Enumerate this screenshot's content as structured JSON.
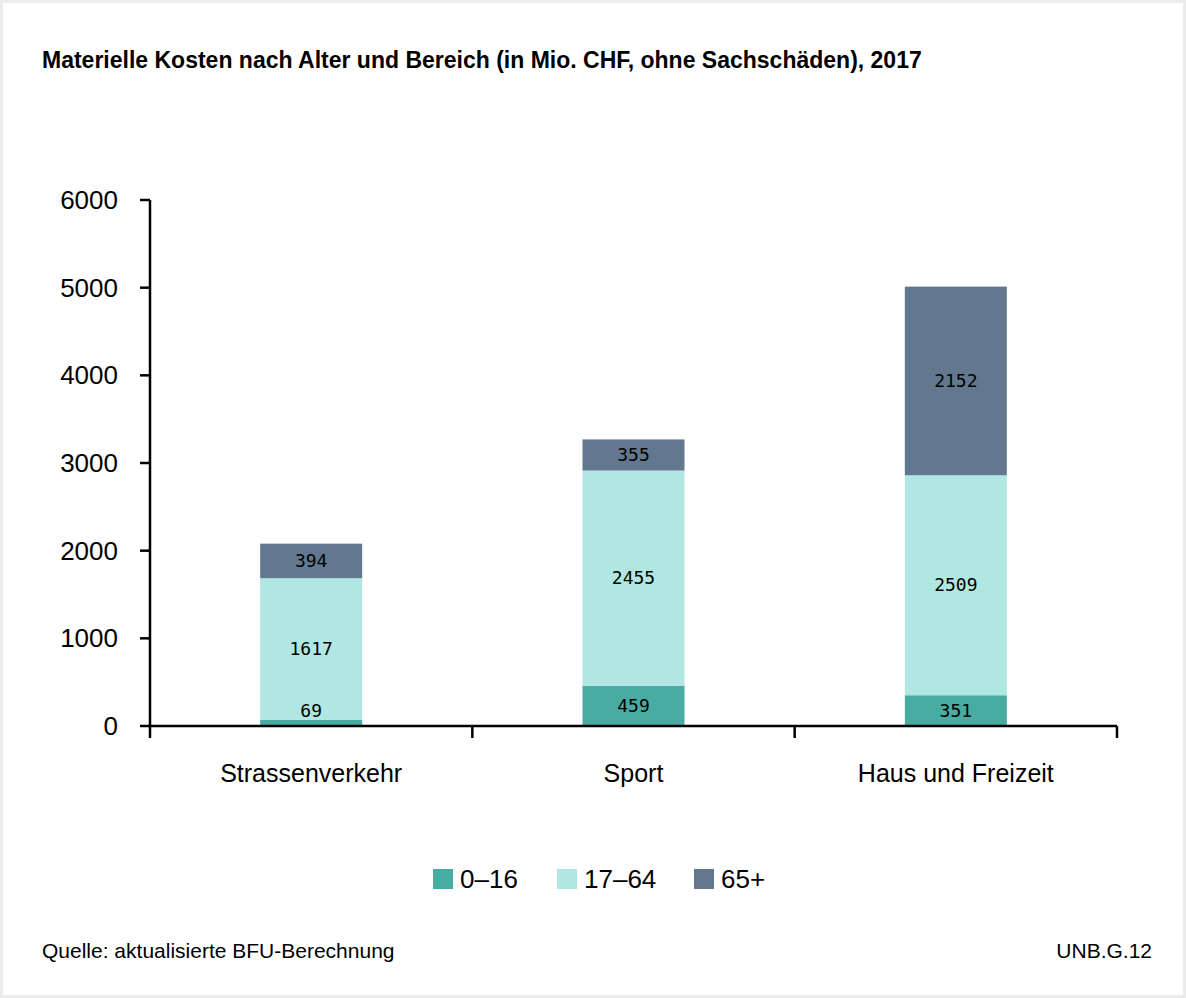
{
  "chart_data": {
    "type": "bar",
    "stacked": true,
    "data_labels": true,
    "grid": false,
    "legend": "bottom",
    "title": "Materielle Kosten nach Alter und Bereich (in Mio. CHF, ohne Sachschäden), 2017",
    "source": "Quelle: aktualisierte BFU-Berechnung",
    "annotations": [
      "UNB.G.12"
    ],
    "categories": [
      "Strassenverkehr",
      "Sport",
      "Haus und Freizeit"
    ],
    "series": [
      {
        "name": "0–16",
        "color": "#48aca2",
        "values": [
          69,
          459,
          351
        ]
      },
      {
        "name": "17–64",
        "color": "#b1e7e2",
        "values": [
          1617,
          2455,
          2509
        ]
      },
      {
        "name": "65+",
        "color": "#62788f",
        "values": [
          394,
          355,
          2152
        ]
      }
    ],
    "ylim": [
      0,
      6000
    ],
    "yticks": [
      0,
      1000,
      2000,
      3000,
      4000,
      5000,
      6000
    ]
  }
}
